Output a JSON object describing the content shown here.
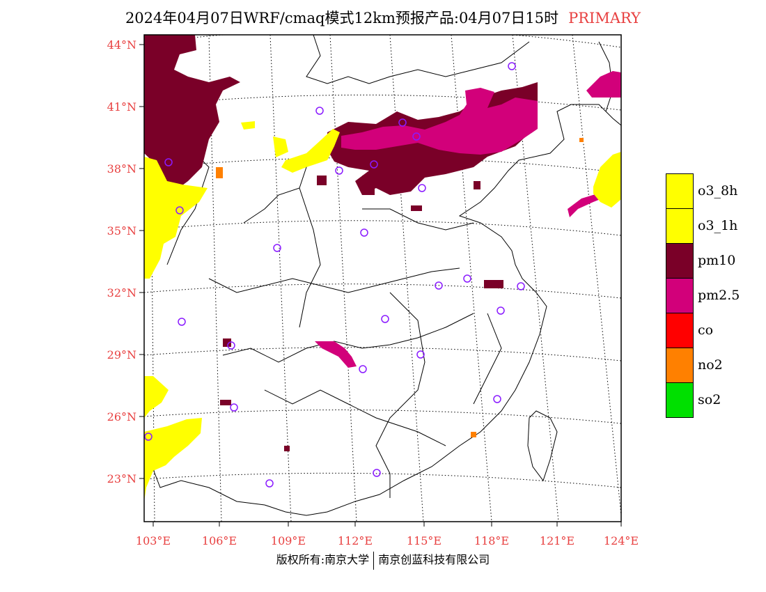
{
  "title": {
    "main": "2024年04月07日WRF/cmaq模式12km预报产品:04月07日15时",
    "tag": "PRIMARY"
  },
  "map": {
    "lat_labels": [
      "44°N",
      "41°N",
      "38°N",
      "35°N",
      "32°N",
      "29°N",
      "26°N",
      "23°N"
    ],
    "lon_labels": [
      "103°E",
      "106°E",
      "109°E",
      "112°E",
      "115°E",
      "118°E",
      "121°E",
      "124°E"
    ]
  },
  "legend": [
    {
      "label": "o3_8h",
      "color": "#ffff00"
    },
    {
      "label": "o3_1h",
      "color": "#ffff00"
    },
    {
      "label": "pm10",
      "color": "#7a0028"
    },
    {
      "label": "pm2.5",
      "color": "#d2007a"
    },
    {
      "label": "co",
      "color": "#ff0000"
    },
    {
      "label": "no2",
      "color": "#ff8000"
    },
    {
      "label": "so2",
      "color": "#00e000"
    }
  ],
  "footer": {
    "left": "版权所有:南京大学",
    "right": "南京创蓝科技有限公司"
  }
}
